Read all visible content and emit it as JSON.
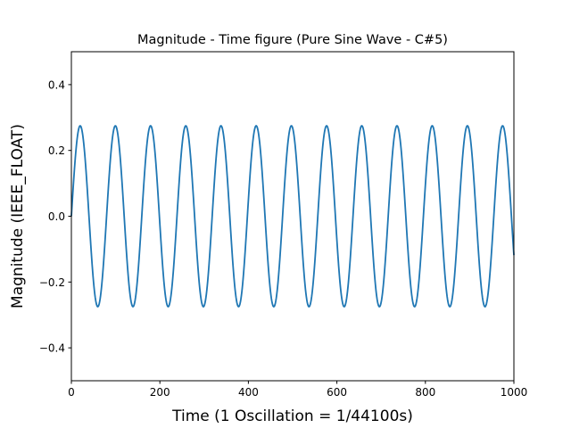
{
  "chart_data": {
    "type": "line",
    "title": "Magnitude - Time figure (Pure Sine Wave - C#5)",
    "xlabel": "Time (1 Oscillation = 1/44100s)",
    "ylabel": "Magnitude (IEEE_FLOAT)",
    "xlim": [
      0,
      1000
    ],
    "ylim": [
      -0.5,
      0.5
    ],
    "x_ticks": [
      0,
      200,
      400,
      600,
      800,
      1000
    ],
    "x_tick_labels": [
      "0",
      "200",
      "400",
      "600",
      "800",
      "1000"
    ],
    "y_ticks": [
      -0.4,
      -0.2,
      0.0,
      0.2,
      0.4
    ],
    "y_tick_labels": [
      "−0.4",
      "−0.2",
      "0.0",
      "0.2",
      "0.4"
    ],
    "grid": false,
    "series": [
      {
        "color": "#1f77b4",
        "function": "sine",
        "amplitude": 0.275,
        "frequency_hz": 554.37,
        "sample_rate_hz": 44100,
        "x_start": 0,
        "x_end": 1000
      }
    ]
  }
}
